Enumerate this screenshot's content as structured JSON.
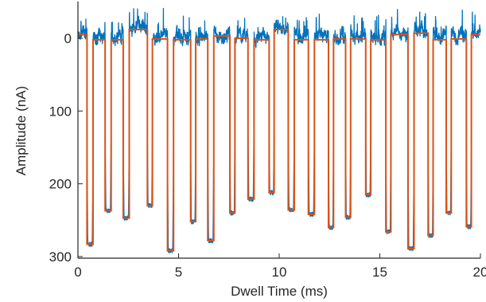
{
  "chart_data": {
    "type": "line",
    "title": "",
    "xlabel": "Dwell Time (ms)",
    "ylabel": "Amplitude (nA)",
    "xlim": [
      0,
      20
    ],
    "ylim": [
      0,
      300
    ],
    "y_reversed": true,
    "grid": false,
    "xticks": [
      0,
      5,
      10,
      15,
      20
    ],
    "yticks": [
      0,
      100,
      200,
      300
    ],
    "colors": {
      "raw": "#0072BD",
      "fit": "#D95319",
      "axis": "#262626"
    },
    "series": [
      {
        "style": "noisy-trace",
        "color": "#0072BD"
      },
      {
        "style": "step-fit",
        "color": "#D95319"
      }
    ],
    "events": [
      {
        "start": 0.45,
        "end": 0.75,
        "depth": 283
      },
      {
        "start": 1.35,
        "end": 1.65,
        "depth": 237
      },
      {
        "start": 2.25,
        "end": 2.55,
        "depth": 247
      },
      {
        "start": 3.45,
        "end": 3.7,
        "depth": 230
      },
      {
        "start": 4.45,
        "end": 4.75,
        "depth": 292
      },
      {
        "start": 5.6,
        "end": 5.85,
        "depth": 252
      },
      {
        "start": 6.45,
        "end": 6.75,
        "depth": 278
      },
      {
        "start": 7.55,
        "end": 7.8,
        "depth": 240
      },
      {
        "start": 8.45,
        "end": 8.75,
        "depth": 221
      },
      {
        "start": 9.5,
        "end": 9.75,
        "depth": 212
      },
      {
        "start": 10.45,
        "end": 10.75,
        "depth": 236
      },
      {
        "start": 11.45,
        "end": 11.75,
        "depth": 242
      },
      {
        "start": 12.45,
        "end": 12.7,
        "depth": 260
      },
      {
        "start": 13.3,
        "end": 13.55,
        "depth": 246
      },
      {
        "start": 14.3,
        "end": 14.55,
        "depth": 215
      },
      {
        "start": 15.3,
        "end": 15.55,
        "depth": 266
      },
      {
        "start": 16.4,
        "end": 16.7,
        "depth": 289
      },
      {
        "start": 17.4,
        "end": 17.65,
        "depth": 271
      },
      {
        "start": 18.3,
        "end": 18.55,
        "depth": 240
      },
      {
        "start": 19.3,
        "end": 19.55,
        "depth": 259
      }
    ],
    "baselines": [
      {
        "from": 0.0,
        "to": 0.45,
        "level": -5
      },
      {
        "from": 0.75,
        "to": 1.35,
        "level": 2
      },
      {
        "from": 1.65,
        "to": 2.25,
        "level": 2
      },
      {
        "from": 2.55,
        "to": 3.45,
        "level": -12
      },
      {
        "from": 3.7,
        "to": 4.45,
        "level": 1
      },
      {
        "from": 4.75,
        "to": 5.6,
        "level": 2
      },
      {
        "from": 5.85,
        "to": 6.45,
        "level": 1
      },
      {
        "from": 6.75,
        "to": 7.55,
        "level": -3
      },
      {
        "from": 7.8,
        "to": 8.45,
        "level": 0
      },
      {
        "from": 8.75,
        "to": 9.5,
        "level": 2
      },
      {
        "from": 9.75,
        "to": 10.45,
        "level": -12
      },
      {
        "from": 10.75,
        "to": 11.45,
        "level": 2
      },
      {
        "from": 11.75,
        "to": 12.45,
        "level": 2
      },
      {
        "from": 12.7,
        "to": 13.3,
        "level": 1
      },
      {
        "from": 13.55,
        "to": 14.3,
        "level": 1
      },
      {
        "from": 14.55,
        "to": 15.3,
        "level": 2
      },
      {
        "from": 15.55,
        "to": 16.4,
        "level": -5
      },
      {
        "from": 16.7,
        "to": 17.4,
        "level": -7
      },
      {
        "from": 17.65,
        "to": 18.3,
        "level": 2
      },
      {
        "from": 18.55,
        "to": 19.3,
        "level": 1
      },
      {
        "from": 19.55,
        "to": 20.0,
        "level": -5
      }
    ]
  }
}
